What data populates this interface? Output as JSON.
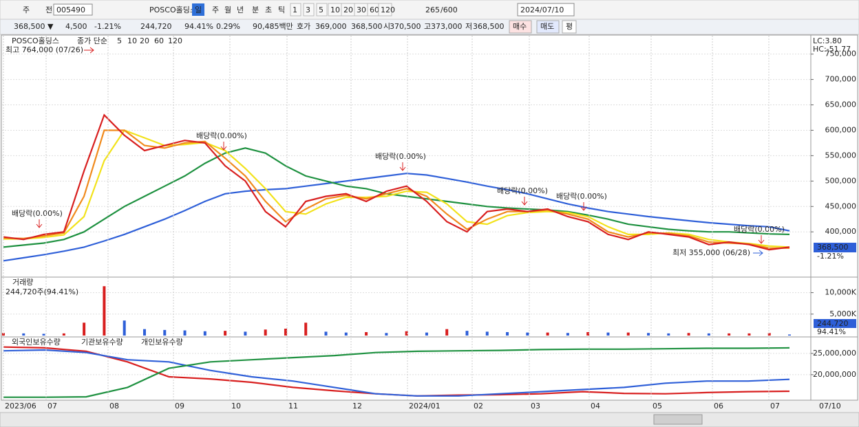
{
  "toolbar": {
    "row1": [
      "주",
      "전",
      "005490",
      "POSCO홀딩스",
      "일",
      "주",
      "월",
      "년",
      "분",
      "초",
      "틱",
      "1",
      "3",
      "5",
      "10",
      "20",
      "30",
      "60",
      "120",
      "265",
      "/600",
      "2024/07/10"
    ],
    "row2": [
      "368,500 ▼",
      "4,500",
      "-1.21%",
      "244,720",
      "94.41%",
      "0.29%",
      "90,485백만",
      "호가",
      "369,000",
      "368,500",
      "시",
      "370,500",
      "고",
      "373,000",
      "저",
      "368,500",
      "매수",
      "매도",
      "평"
    ]
  },
  "price_panel": {
    "legend": {
      "name": "POSCO홀딩스",
      "ma_label": "종가 단순"
    },
    "high_note": "최고 764,000 (07/26)",
    "low_note": "최저 355,000 (06/28)",
    "dividend_notes": [
      "배당락(0.00%)",
      "배당락(0.00%)",
      "배당락(0.00%)",
      "배당락(0.00%)",
      "배당락(0.00%)",
      "배당락(0.00%)"
    ],
    "lc": "LC:3.80",
    "hc": "HC:-51.77",
    "last_price": "368,500",
    "last_change": "-1.21%",
    "ylim": [
      315000,
      782000
    ],
    "yticks": [
      {
        "value": 400000,
        "label": "400,000"
      },
      {
        "value": 450000,
        "label": "450,000"
      },
      {
        "value": 500000,
        "label": "500,000"
      },
      {
        "value": 550000,
        "label": "550,000"
      },
      {
        "value": 600000,
        "label": "600,000"
      },
      {
        "value": 650000,
        "label": "650,000"
      },
      {
        "value": 700000,
        "label": "700,000"
      },
      {
        "value": 750000,
        "label": "750,000"
      }
    ],
    "series": [
      {
        "name": "5",
        "color": "#d81e1e",
        "values": [
          390000,
          385000,
          395000,
          400000,
          520000,
          630000,
          590000,
          560000,
          570000,
          580000,
          575000,
          530000,
          500000,
          440000,
          410000,
          460000,
          470000,
          475000,
          460000,
          480000,
          490000,
          460000,
          420000,
          400000,
          440000,
          445000,
          440000,
          445000,
          430000,
          420000,
          395000,
          385000,
          400000,
          395000,
          390000,
          375000,
          380000,
          375000,
          365000,
          370000
        ]
      },
      {
        "name": "10",
        "color": "#f08a1c",
        "values": [
          388000,
          387000,
          392000,
          398000,
          470000,
          600000,
          600000,
          570000,
          565000,
          575000,
          578000,
          545000,
          510000,
          460000,
          420000,
          445000,
          465000,
          472000,
          465000,
          475000,
          485000,
          470000,
          435000,
          405000,
          425000,
          440000,
          440000,
          443000,
          435000,
          425000,
          400000,
          390000,
          398000,
          397000,
          392000,
          380000,
          378000,
          376000,
          368000,
          368000
        ]
      },
      {
        "name": "20",
        "color": "#f2e21a",
        "values": [
          386000,
          386000,
          389000,
          394000,
          430000,
          540000,
          600000,
          585000,
          570000,
          572000,
          576000,
          560000,
          525000,
          485000,
          440000,
          435000,
          455000,
          468000,
          468000,
          470000,
          480000,
          478000,
          455000,
          420000,
          415000,
          432000,
          438000,
          440000,
          438000,
          430000,
          410000,
          395000,
          395000,
          398000,
          395000,
          385000,
          380000,
          377000,
          372000,
          370000
        ]
      },
      {
        "name": "60",
        "color": "#1e9140",
        "values": [
          370000,
          374000,
          378000,
          385000,
          400000,
          425000,
          450000,
          470000,
          490000,
          510000,
          535000,
          555000,
          565000,
          555000,
          530000,
          510000,
          500000,
          490000,
          485000,
          475000,
          470000,
          465000,
          460000,
          455000,
          450000,
          447000,
          445000,
          443000,
          440000,
          433000,
          425000,
          415000,
          410000,
          405000,
          402000,
          400000,
          400000,
          398000,
          396000,
          395000
        ]
      },
      {
        "name": "120",
        "color": "#2e5fd8",
        "values": [
          343000,
          349000,
          355000,
          362000,
          370000,
          382000,
          395000,
          410000,
          425000,
          442000,
          460000,
          475000,
          480000,
          483000,
          485000,
          490000,
          495000,
          500000,
          505000,
          510000,
          515000,
          512000,
          505000,
          498000,
          490000,
          483000,
          475000,
          465000,
          455000,
          447000,
          440000,
          435000,
          430000,
          426000,
          422000,
          418000,
          415000,
          412000,
          410000,
          402000
        ]
      }
    ]
  },
  "volume_panel": {
    "title": "거래량",
    "note": "244,720주(94.41%)",
    "last_value": "244,720",
    "last_ratio": "94.41%",
    "ylim": [
      0,
      13300000
    ],
    "yticks": [
      {
        "value": 5000000,
        "label": "5,000K"
      },
      {
        "value": 10000000,
        "label": "10,000K"
      }
    ],
    "up_color": "#d81e1e",
    "down_color": "#2e5fd8",
    "values": [
      600000,
      500000,
      400000,
      500000,
      3000000,
      11500000,
      3500000,
      1500000,
      1300000,
      1200000,
      1000000,
      1100000,
      900000,
      1400000,
      1600000,
      3000000,
      900000,
      700000,
      800000,
      600000,
      1000000,
      700000,
      1500000,
      1100000,
      900000,
      800000,
      700000,
      700000,
      600000,
      800000,
      700000,
      700000,
      600000,
      500000,
      600000,
      500000,
      500000,
      500000,
      600000,
      244720
    ]
  },
  "holdings_panel": {
    "ylim": [
      14000000,
      28550000
    ],
    "yticks": [
      {
        "value": 20000000,
        "label": "20,000,000"
      },
      {
        "value": 25000000,
        "label": "25,000,000"
      }
    ],
    "series": [
      {
        "name": "외국인보유수량",
        "color": "#d81e1e",
        "values": [
          26500000,
          26300000,
          25500000,
          23000000,
          19500000,
          19000000,
          18200000,
          17000000,
          16200000,
          15500000,
          15000000,
          15200000,
          15300000,
          15500000,
          16000000,
          15600000,
          15500000,
          15800000,
          16000000,
          16100000
        ]
      },
      {
        "name": "기관보유수량",
        "color": "#2e5fd8",
        "values": [
          25600000,
          25800000,
          25200000,
          23500000,
          23000000,
          21000000,
          19500000,
          18500000,
          17000000,
          15500000,
          15000000,
          15000000,
          15500000,
          16000000,
          16500000,
          17000000,
          18000000,
          18500000,
          18500000,
          18900000
        ]
      },
      {
        "name": "개인보유수량",
        "color": "#1e9140",
        "values": [
          14700000,
          14700000,
          14800000,
          17000000,
          21500000,
          23000000,
          23500000,
          24000000,
          24500000,
          25200000,
          25500000,
          25600000,
          25700000,
          25900000,
          26000000,
          26000000,
          26100000,
          26200000,
          26200000,
          26300000
        ]
      }
    ]
  },
  "x_labels": [
    "2023/06",
    "07",
    "08",
    "09",
    "10",
    "11",
    "12",
    "2024/01",
    "02",
    "03",
    "04",
    "05",
    "06",
    "07",
    "07/10"
  ]
}
